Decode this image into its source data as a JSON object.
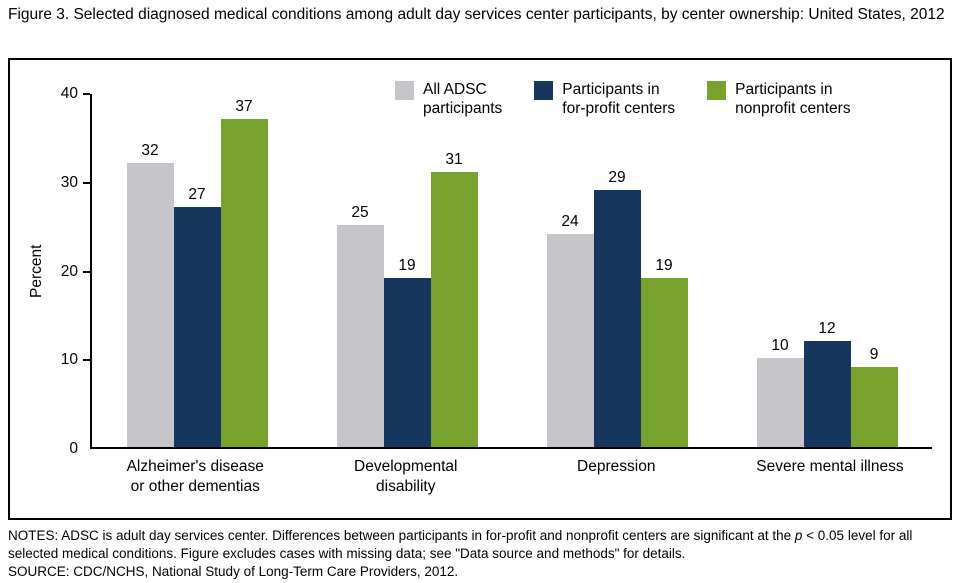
{
  "title": "Figure 3. Selected diagnosed medical conditions among adult day services center participants, by center ownership: United States, 2012",
  "notes": {
    "part1": "NOTES: ADSC is adult day services center. Differences between participants in for-profit and nonprofit centers are significant at the ",
    "p_italic": "p",
    "part2": " < 0.05 level for all selected medical conditions. Figure excludes cases with missing data; see \"Data source and methods\" for details."
  },
  "source": "SOURCE: CDC/NCHS, National Study of Long-Term Care Providers, 2012.",
  "chart_data": {
    "type": "bar",
    "title": "",
    "xlabel": "",
    "ylabel": "Percent",
    "ylim": [
      0,
      40
    ],
    "yticks": [
      0,
      10,
      20,
      30,
      40
    ],
    "grid": false,
    "legend_position": "top-right-inside",
    "categories": [
      "Alzheimer's disease\nor other dementias",
      "Developmental\ndisability",
      "Depression",
      "Severe mental illness"
    ],
    "series": [
      {
        "name": "All ADSC\nparticipants",
        "color": "#c6c5c9",
        "values": [
          32,
          25,
          24,
          10
        ]
      },
      {
        "name": "Participants in\nfor-profit centers",
        "color": "#17365d",
        "values": [
          27,
          19,
          29,
          12
        ]
      },
      {
        "name": "Participants in\nnonprofit centers",
        "color": "#76a22d",
        "values": [
          37,
          31,
          19,
          9
        ]
      }
    ]
  }
}
